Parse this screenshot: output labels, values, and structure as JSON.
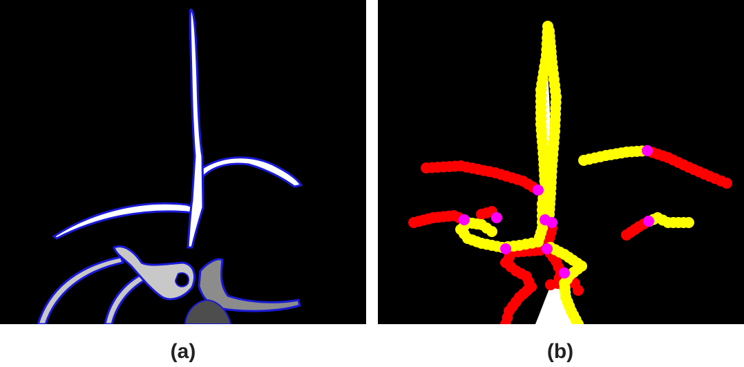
{
  "panels": [
    {
      "id": "a",
      "caption": "(a)"
    },
    {
      "id": "b",
      "caption": "(b)"
    }
  ],
  "colors": {
    "background": "#000000",
    "segment_white": "#ffffff",
    "segment_light_gray": "#c8c8c8",
    "segment_gray": "#8c8c8c",
    "segment_dark_gray": "#4d4d4d",
    "contour_blue": "#1a1ad6",
    "marker_yellow": "#ffff00",
    "marker_red": "#ff0000",
    "marker_magenta": "#ff00ff"
  }
}
